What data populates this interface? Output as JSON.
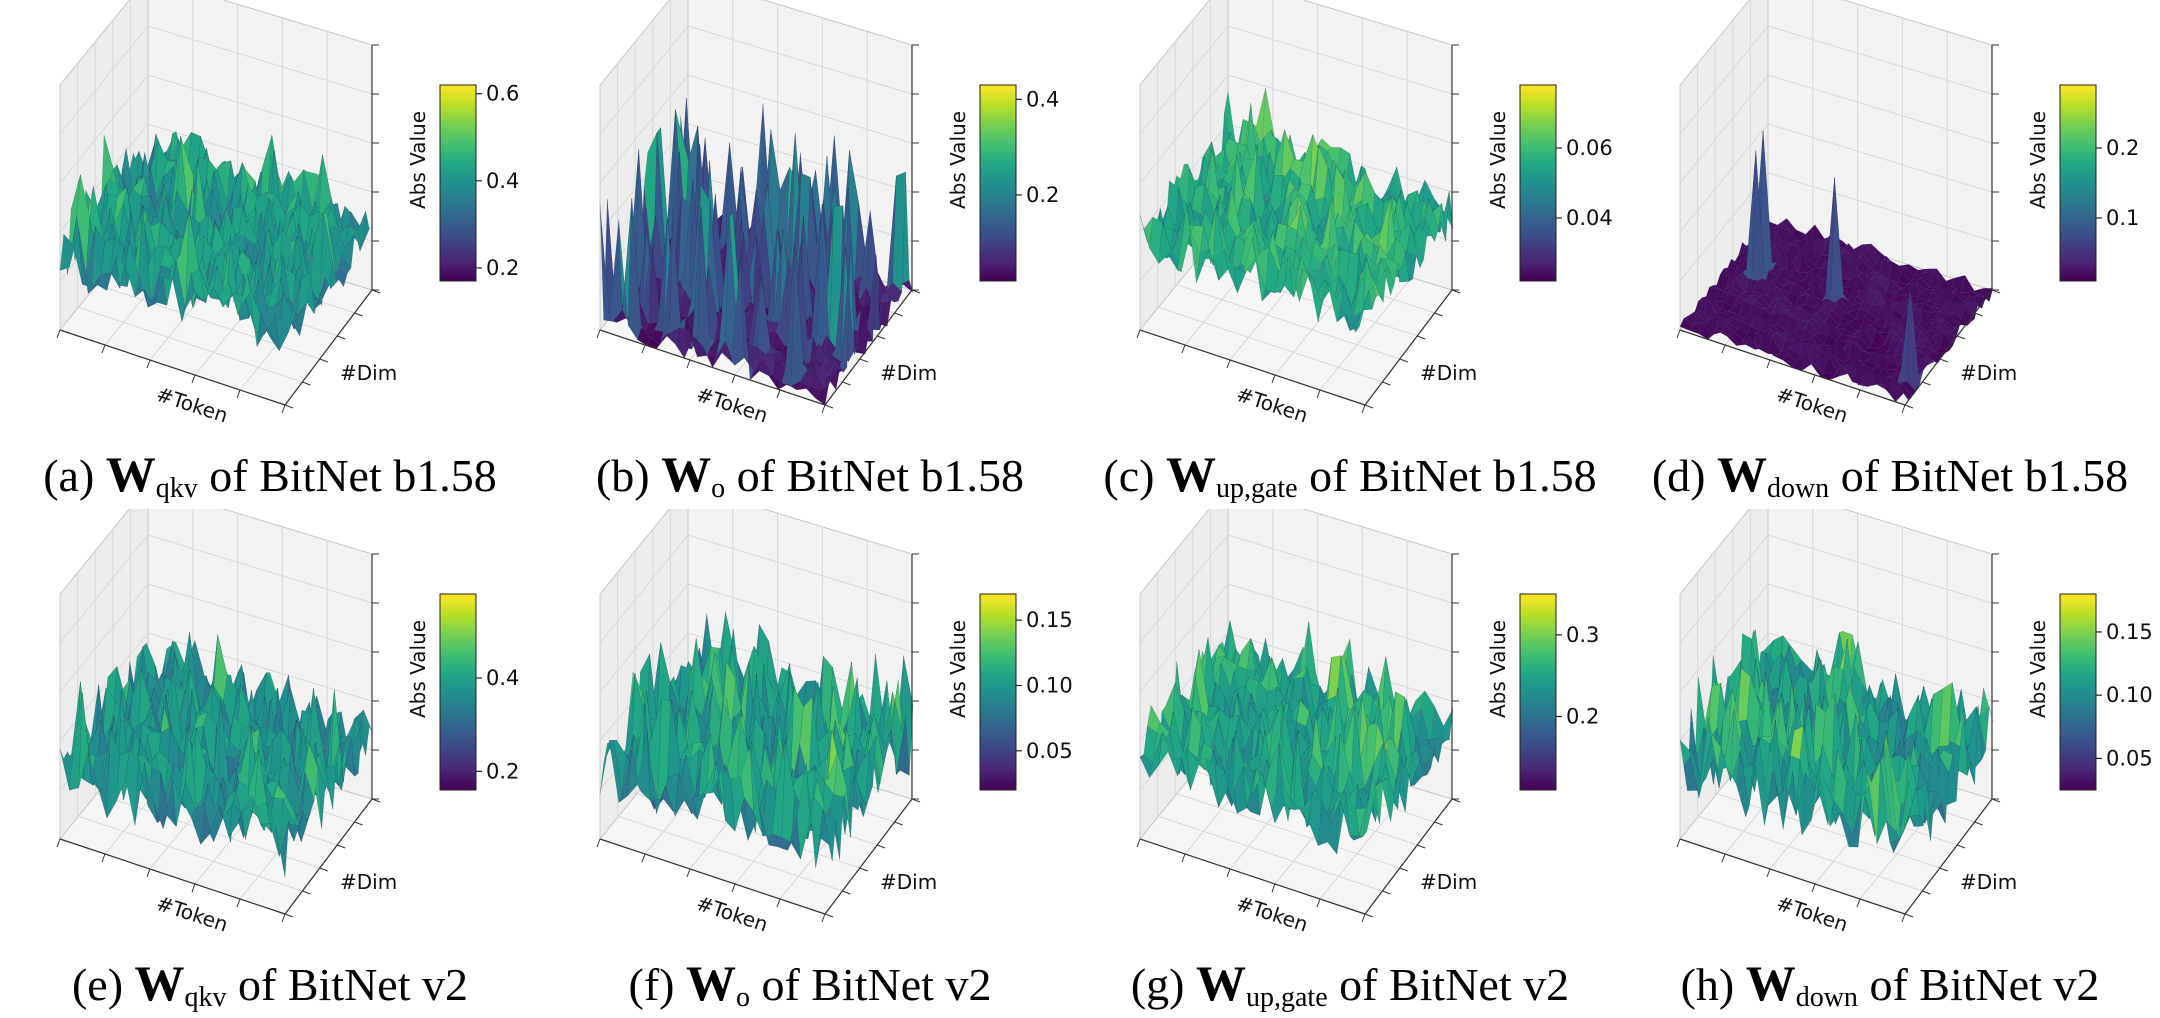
{
  "colormap": "viridis",
  "colors": {
    "viridis_low": "#440154",
    "viridis_mid": "#21918c",
    "viridis_high": "#fde725",
    "pane": "#f2f2f2",
    "grid": "#d8d8d8"
  },
  "chart_data": [
    {
      "type": "surface3d",
      "id": "a",
      "caption": {
        "prefix": "(a)",
        "symbol": "W",
        "subscript": "qkv",
        "suffix": "of BitNet b1.58"
      },
      "xlabel": "#Token",
      "ylabel": "#Dim",
      "zlabel": "Abs Value",
      "colorbar": {
        "range": [
          0.17,
          0.62
        ],
        "ticks": [
          "0.2",
          "0.4",
          "0.6"
        ],
        "tick_values": [
          0.2,
          0.4,
          0.6
        ]
      },
      "surface": {
        "mean": 0.4,
        "spread": 0.1,
        "spikes": "low"
      }
    },
    {
      "type": "surface3d",
      "id": "b",
      "caption": {
        "prefix": "(b)",
        "symbol": "W",
        "subscript": "o",
        "suffix": "of BitNet b1.58"
      },
      "xlabel": "#Token",
      "ylabel": "#Dim",
      "zlabel": "Abs Value",
      "colorbar": {
        "range": [
          0.02,
          0.43
        ],
        "ticks": [
          "0.2",
          "0.4"
        ],
        "tick_values": [
          0.2,
          0.4
        ]
      },
      "surface": {
        "mean": 0.05,
        "spread": 0.04,
        "spikes": "high"
      }
    },
    {
      "type": "surface3d",
      "id": "c",
      "caption": {
        "prefix": "(c)",
        "symbol": "W",
        "subscript": "up,gate",
        "suffix": "of BitNet b1.58"
      },
      "xlabel": "#Token",
      "ylabel": "#Dim",
      "zlabel": "Abs Value",
      "colorbar": {
        "range": [
          0.022,
          0.078
        ],
        "ticks": [
          "0.04",
          "0.06"
        ],
        "tick_values": [
          0.04,
          0.06
        ]
      },
      "surface": {
        "mean": 0.055,
        "spread": 0.01,
        "spikes": "low"
      }
    },
    {
      "type": "surface3d",
      "id": "d",
      "caption": {
        "prefix": "(d)",
        "symbol": "W",
        "subscript": "down",
        "suffix": "of BitNet b1.58"
      },
      "xlabel": "#Token",
      "ylabel": "#Dim",
      "zlabel": "Abs Value",
      "colorbar": {
        "range": [
          0.01,
          0.29
        ],
        "ticks": [
          "0.1",
          "0.2"
        ],
        "tick_values": [
          0.1,
          0.2
        ]
      },
      "surface": {
        "mean": 0.02,
        "spread": 0.015,
        "spikes": "rare"
      }
    },
    {
      "type": "surface3d",
      "id": "e",
      "caption": {
        "prefix": "(e)",
        "symbol": "W",
        "subscript": "qkv",
        "suffix": "of BitNet v2"
      },
      "xlabel": "#Token",
      "ylabel": "#Dim",
      "zlabel": "Abs Value",
      "colorbar": {
        "range": [
          0.16,
          0.58
        ],
        "ticks": [
          "0.2",
          "0.4"
        ],
        "tick_values": [
          0.2,
          0.4
        ]
      },
      "surface": {
        "mean": 0.36,
        "spread": 0.1,
        "spikes": "low"
      }
    },
    {
      "type": "surface3d",
      "id": "f",
      "caption": {
        "prefix": "(f)",
        "symbol": "W",
        "subscript": "o",
        "suffix": "of BitNet v2"
      },
      "xlabel": "#Token",
      "ylabel": "#Dim",
      "zlabel": "Abs Value",
      "colorbar": {
        "range": [
          0.02,
          0.17
        ],
        "ticks": [
          "0.05",
          "0.10",
          "0.15"
        ],
        "tick_values": [
          0.05,
          0.1,
          0.15
        ]
      },
      "surface": {
        "mean": 0.09,
        "spread": 0.035,
        "spikes": "high"
      }
    },
    {
      "type": "surface3d",
      "id": "g",
      "caption": {
        "prefix": "(g)",
        "symbol": "W",
        "subscript": "up,gate",
        "suffix": "of BitNet v2"
      },
      "xlabel": "#Token",
      "ylabel": "#Dim",
      "zlabel": "Abs Value",
      "colorbar": {
        "range": [
          0.11,
          0.35
        ],
        "ticks": [
          "0.2",
          "0.3"
        ],
        "tick_values": [
          0.2,
          0.3
        ]
      },
      "surface": {
        "mean": 0.24,
        "spread": 0.05,
        "spikes": "medium"
      }
    },
    {
      "type": "surface3d",
      "id": "h",
      "caption": {
        "prefix": "(h)",
        "symbol": "W",
        "subscript": "down",
        "suffix": "of BitNet v2"
      },
      "xlabel": "#Token",
      "ylabel": "#Dim",
      "zlabel": "Abs Value",
      "colorbar": {
        "range": [
          0.025,
          0.18
        ],
        "ticks": [
          "0.05",
          "0.10",
          "0.15"
        ],
        "tick_values": [
          0.05,
          0.1,
          0.15
        ]
      },
      "surface": {
        "mean": 0.1,
        "spread": 0.035,
        "spikes": "high"
      }
    }
  ]
}
